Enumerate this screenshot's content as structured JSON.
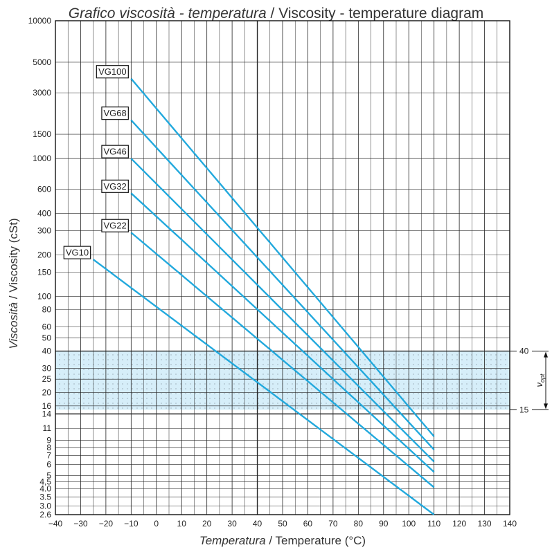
{
  "title": {
    "italic": "Grafico viscosità - temperatura",
    "sep": " / ",
    "normal": "Viscosity - temperature diagram"
  },
  "xlabel": {
    "italic": "Temperatura",
    "sep": " / ",
    "normal": "Temperature (°C)"
  },
  "ylabel": {
    "italic": "Viscosità",
    "sep": " / ",
    "normal": "Viscosity (cSt)"
  },
  "colors": {
    "line": "#22a9dd",
    "band": "#d6eef9",
    "grid": "#222222",
    "axis": "#111111"
  },
  "chart_data": {
    "type": "line",
    "title": "Grafico viscosità - temperatura / Viscosity - temperature diagram",
    "xlabel": "Temperatura / Temperature (°C)",
    "ylabel": "Viscosità / Viscosity (cSt)",
    "xlim": [
      -40,
      140
    ],
    "ylim": [
      2.6,
      10000
    ],
    "yscale": "log",
    "grid": true,
    "x_ticks": [
      -40,
      -30,
      -20,
      -10,
      0,
      10,
      20,
      30,
      40,
      50,
      60,
      70,
      80,
      90,
      100,
      110,
      120,
      130,
      140
    ],
    "x_tick_labels": [
      "−40",
      "−30",
      "−20",
      "−10",
      "0",
      "10",
      "20",
      "30",
      "40",
      "50",
      "60",
      "70",
      "80",
      "90",
      "100",
      "110",
      "120",
      "130",
      "140"
    ],
    "y_ticks": [
      2.6,
      3.0,
      3.5,
      4.0,
      4.5,
      5,
      6,
      7,
      8,
      9,
      11,
      14,
      16,
      20,
      25,
      30,
      40,
      50,
      60,
      80,
      100,
      150,
      200,
      300,
      400,
      600,
      1000,
      1500,
      3000,
      5000,
      10000
    ],
    "y_tick_labels": [
      "2.6",
      "3.0",
      "3.5",
      "4.0",
      "4,5",
      "5",
      "6",
      "7",
      "8",
      "9",
      "11",
      "14",
      "16",
      "20",
      "25",
      "30",
      "40",
      "50",
      "60",
      "80",
      "100",
      "150",
      "200",
      "300",
      "400",
      "600",
      "1000",
      "1500",
      "3000",
      "5000",
      "10000"
    ],
    "series": [
      {
        "name": "VG10",
        "x": [
          -25,
          110
        ],
        "y": [
          185,
          2.6
        ]
      },
      {
        "name": "VG22",
        "x": [
          -10,
          110
        ],
        "y": [
          290,
          4.1
        ]
      },
      {
        "name": "VG32",
        "x": [
          -10,
          110
        ],
        "y": [
          560,
          5.3
        ]
      },
      {
        "name": "VG46",
        "x": [
          -10,
          110
        ],
        "y": [
          1000,
          6.3
        ]
      },
      {
        "name": "VG68",
        "x": [
          -10,
          110
        ],
        "y": [
          1900,
          7.7
        ]
      },
      {
        "name": "VG100",
        "x": [
          -10,
          110
        ],
        "y": [
          3800,
          9.6
        ]
      }
    ],
    "band": {
      "label": "ν",
      "label_sub": "opt",
      "from": 15,
      "to": 40,
      "from_label": "15",
      "to_label": "40"
    }
  }
}
